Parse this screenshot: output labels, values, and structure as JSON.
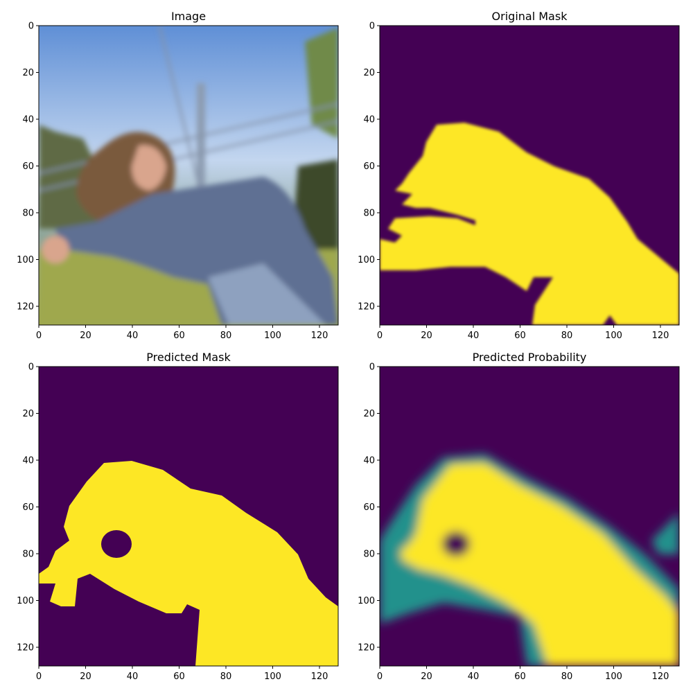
{
  "figure": {
    "background": "#ffffff"
  },
  "colors": {
    "viridis_low": "#440154",
    "viridis_mid": "#21918c",
    "viridis_high": "#fde725",
    "sky": "#c3d6ef",
    "grass": "#9fa84d",
    "jacket": "#5f6f93",
    "hair": "#7a5a3c"
  },
  "chart_data": [
    {
      "type": "heatmap",
      "title": "Image",
      "content": "rgb-photo",
      "xlim": [
        0,
        128
      ],
      "ylim": [
        128,
        0
      ],
      "xticks": [
        0,
        20,
        40,
        60,
        80,
        100,
        120
      ],
      "yticks": [
        0,
        20,
        40,
        60,
        80,
        100,
        120
      ],
      "grid": false
    },
    {
      "type": "heatmap",
      "title": "Original Mask",
      "content": "binary-mask-smooth",
      "colormap": "viridis",
      "xlim": [
        0,
        128
      ],
      "ylim": [
        128,
        0
      ],
      "xticks": [
        0,
        20,
        40,
        60,
        80,
        100,
        120
      ],
      "yticks": [
        0,
        20,
        40,
        60,
        80,
        100,
        120
      ],
      "grid": false
    },
    {
      "type": "heatmap",
      "title": "Predicted Mask",
      "content": "binary-mask",
      "colormap": "viridis",
      "xlim": [
        0,
        128
      ],
      "ylim": [
        128,
        0
      ],
      "xticks": [
        0,
        20,
        40,
        60,
        80,
        100,
        120
      ],
      "yticks": [
        0,
        20,
        40,
        60,
        80,
        100,
        120
      ],
      "grid": false
    },
    {
      "type": "heatmap",
      "title": "Predicted Probability",
      "content": "probability-map",
      "colormap": "viridis",
      "xlim": [
        0,
        128
      ],
      "ylim": [
        128,
        0
      ],
      "xticks": [
        0,
        20,
        40,
        60,
        80,
        100,
        120
      ],
      "yticks": [
        0,
        20,
        40,
        60,
        80,
        100,
        120
      ],
      "grid": false
    }
  ]
}
